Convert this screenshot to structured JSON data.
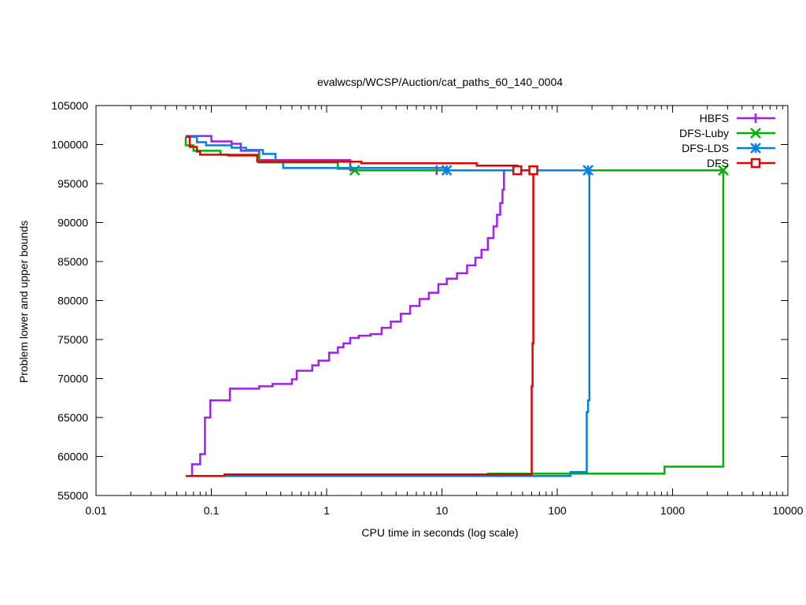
{
  "chart_data": {
    "type": "line",
    "title": "evalwcsp/WCSP/Auction/cat_paths_60_140_0004",
    "xlabel": "CPU time in seconds (log scale)",
    "ylabel": "Problem lower and upper bounds",
    "xscale": "log",
    "xlim": [
      0.01,
      10000
    ],
    "ylim": [
      55000,
      105000
    ],
    "xticks": [
      {
        "value": 0.01,
        "label": "0.01"
      },
      {
        "value": 0.1,
        "label": "0.1"
      },
      {
        "value": 1,
        "label": "1"
      },
      {
        "value": 10,
        "label": "10"
      },
      {
        "value": 100,
        "label": "100"
      },
      {
        "value": 1000,
        "label": "1000"
      },
      {
        "value": 10000,
        "label": "10000"
      }
    ],
    "yticks": [
      {
        "value": 55000,
        "label": "55000"
      },
      {
        "value": 60000,
        "label": "60000"
      },
      {
        "value": 65000,
        "label": "65000"
      },
      {
        "value": 70000,
        "label": "70000"
      },
      {
        "value": 75000,
        "label": "75000"
      },
      {
        "value": 80000,
        "label": "80000"
      },
      {
        "value": 85000,
        "label": "85000"
      },
      {
        "value": 90000,
        "label": "90000"
      },
      {
        "value": 95000,
        "label": "95000"
      },
      {
        "value": 100000,
        "label": "100000"
      },
      {
        "value": 105000,
        "label": "105000"
      }
    ],
    "grid": false,
    "legend_position": "top-right",
    "series": [
      {
        "name": "HBFS",
        "color": "#a020f0",
        "marker": "plus",
        "upper": [
          [
            0.06,
            101100
          ],
          [
            0.1,
            101100
          ],
          [
            0.1,
            100400
          ],
          [
            0.15,
            100400
          ],
          [
            0.15,
            100100
          ],
          [
            0.18,
            100100
          ],
          [
            0.18,
            99200
          ],
          [
            0.26,
            99200
          ],
          [
            0.26,
            98000
          ],
          [
            1.6,
            98000
          ],
          [
            1.6,
            96700
          ],
          [
            35,
            96700
          ]
        ],
        "lower": [
          [
            0.06,
            57500
          ],
          [
            0.068,
            57500
          ],
          [
            0.068,
            59000
          ],
          [
            0.08,
            59000
          ],
          [
            0.08,
            60300
          ],
          [
            0.088,
            60300
          ],
          [
            0.088,
            65000
          ],
          [
            0.098,
            65000
          ],
          [
            0.098,
            67200
          ],
          [
            0.145,
            67200
          ],
          [
            0.145,
            68700
          ],
          [
            0.26,
            68700
          ],
          [
            0.26,
            69000
          ],
          [
            0.34,
            69000
          ],
          [
            0.34,
            69300
          ],
          [
            0.5,
            69300
          ],
          [
            0.5,
            69900
          ],
          [
            0.55,
            69900
          ],
          [
            0.55,
            71000
          ],
          [
            0.75,
            71000
          ],
          [
            0.75,
            71700
          ],
          [
            0.85,
            71700
          ],
          [
            0.85,
            72300
          ],
          [
            1.05,
            72300
          ],
          [
            1.05,
            73300
          ],
          [
            1.25,
            73300
          ],
          [
            1.25,
            74000
          ],
          [
            1.4,
            74000
          ],
          [
            1.4,
            74500
          ],
          [
            1.6,
            74500
          ],
          [
            1.6,
            75200
          ],
          [
            1.9,
            75200
          ],
          [
            1.9,
            75500
          ],
          [
            2.4,
            75500
          ],
          [
            2.4,
            75700
          ],
          [
            3.0,
            75700
          ],
          [
            3.0,
            76500
          ],
          [
            3.6,
            76500
          ],
          [
            3.6,
            77300
          ],
          [
            4.4,
            77300
          ],
          [
            4.4,
            78300
          ],
          [
            5.3,
            78300
          ],
          [
            5.3,
            79300
          ],
          [
            6.4,
            79300
          ],
          [
            6.4,
            80200
          ],
          [
            7.7,
            80200
          ],
          [
            7.7,
            81000
          ],
          [
            9.3,
            81000
          ],
          [
            9.3,
            82100
          ],
          [
            11,
            82100
          ],
          [
            11,
            82800
          ],
          [
            13.5,
            82800
          ],
          [
            13.5,
            83500
          ],
          [
            16.5,
            83500
          ],
          [
            16.5,
            84500
          ],
          [
            19.5,
            84500
          ],
          [
            19.5,
            85500
          ],
          [
            22,
            85500
          ],
          [
            22,
            86500
          ],
          [
            25,
            86500
          ],
          [
            25,
            88000
          ],
          [
            28,
            88000
          ],
          [
            28,
            89500
          ],
          [
            30,
            89500
          ],
          [
            30,
            91000
          ],
          [
            32,
            91000
          ],
          [
            32,
            92500
          ],
          [
            33.5,
            92500
          ],
          [
            33.5,
            94200
          ],
          [
            34.5,
            94200
          ],
          [
            34.5,
            96700
          ],
          [
            35,
            96700
          ]
        ],
        "marker_points": [
          [
            9,
            96700
          ]
        ]
      },
      {
        "name": "DFS-Luby",
        "color": "#00b000",
        "marker": "x",
        "upper": [
          [
            0.06,
            101000
          ],
          [
            0.06,
            99900
          ],
          [
            0.07,
            99900
          ],
          [
            0.07,
            99200
          ],
          [
            0.12,
            99200
          ],
          [
            0.12,
            98700
          ],
          [
            0.26,
            98700
          ],
          [
            0.26,
            97700
          ],
          [
            1.25,
            97700
          ],
          [
            1.25,
            96900
          ],
          [
            1.8,
            96900
          ],
          [
            1.8,
            96700
          ],
          [
            2750,
            96700
          ]
        ],
        "lower": [
          [
            0.06,
            57500
          ],
          [
            0.9,
            57500
          ],
          [
            25,
            57600
          ],
          [
            25,
            57800
          ],
          [
            850,
            57800
          ],
          [
            850,
            58700
          ],
          [
            2750,
            58700
          ],
          [
            2750,
            96700
          ]
        ],
        "marker_points": [
          [
            1.75,
            96700
          ],
          [
            2750,
            96700
          ]
        ]
      },
      {
        "name": "DFS-LDS",
        "color": "#0080e0",
        "marker": "asterisk",
        "upper": [
          [
            0.06,
            101000
          ],
          [
            0.075,
            101000
          ],
          [
            0.075,
            100300
          ],
          [
            0.09,
            100300
          ],
          [
            0.09,
            99900
          ],
          [
            0.15,
            99900
          ],
          [
            0.15,
            99600
          ],
          [
            0.2,
            99600
          ],
          [
            0.2,
            99300
          ],
          [
            0.28,
            99300
          ],
          [
            0.28,
            98800
          ],
          [
            0.36,
            98800
          ],
          [
            0.36,
            97800
          ],
          [
            0.42,
            97800
          ],
          [
            0.42,
            97000
          ],
          [
            11,
            97000
          ],
          [
            11,
            96700
          ],
          [
            190,
            96700
          ]
        ],
        "lower": [
          [
            0.06,
            57500
          ],
          [
            130,
            57500
          ],
          [
            130,
            58000
          ],
          [
            180,
            58000
          ],
          [
            180,
            65700
          ],
          [
            185,
            65700
          ],
          [
            185,
            67200
          ],
          [
            190,
            67200
          ],
          [
            190,
            96700
          ]
        ],
        "marker_points": [
          [
            11,
            96700
          ],
          [
            185,
            96700
          ]
        ]
      },
      {
        "name": "DFS",
        "color": "#e00000",
        "marker": "square",
        "upper": [
          [
            0.06,
            101000
          ],
          [
            0.065,
            101000
          ],
          [
            0.065,
            99700
          ],
          [
            0.075,
            99700
          ],
          [
            0.075,
            99100
          ],
          [
            0.08,
            99100
          ],
          [
            0.08,
            98700
          ],
          [
            0.14,
            98700
          ],
          [
            0.14,
            98600
          ],
          [
            0.25,
            98600
          ],
          [
            0.25,
            97800
          ],
          [
            2.0,
            97800
          ],
          [
            2.0,
            97600
          ],
          [
            20,
            97600
          ],
          [
            20,
            97300
          ],
          [
            45,
            97300
          ],
          [
            45,
            96700
          ],
          [
            61,
            96700
          ]
        ],
        "lower": [
          [
            0.06,
            57500
          ],
          [
            0.13,
            57500
          ],
          [
            0.13,
            57700
          ],
          [
            60,
            57700
          ],
          [
            60,
            69000
          ],
          [
            61,
            69000
          ],
          [
            61,
            74500
          ],
          [
            62,
            74500
          ],
          [
            62,
            96700
          ]
        ],
        "marker_points": [
          [
            45,
            96700
          ],
          [
            62,
            96700
          ]
        ]
      }
    ]
  }
}
